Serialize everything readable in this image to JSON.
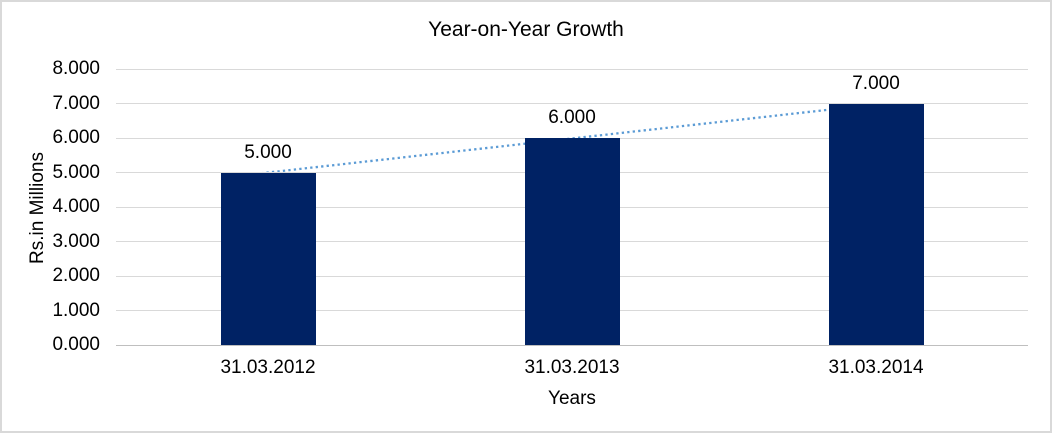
{
  "window": {
    "background_color": "#ffffff",
    "border_color": "#d9d9d9"
  },
  "chart_data": {
    "type": "bar",
    "title": "Year-on-Year Growth",
    "xlabel": "Years",
    "ylabel": "Rs.in Millions",
    "categories": [
      "31.03.2012",
      "31.03.2013",
      "31.03.2014"
    ],
    "values": [
      5000,
      6000,
      7000
    ],
    "value_labels": [
      "5.000",
      "6.000",
      "7.000"
    ],
    "y_ticks": [
      "0.000",
      "1.000",
      "2.000",
      "3.000",
      "4.000",
      "5.000",
      "6.000",
      "7.000",
      "8.000"
    ],
    "ylim": [
      0,
      8000
    ],
    "grid": true,
    "legend": "none",
    "bar_color": "#002264",
    "gridline_color": "#d9d9d9",
    "axis_line_color": "#bfbfbf",
    "text_color": "#000000",
    "trendline": {
      "style": "dotted",
      "color": "#5b9bd5",
      "from_category": "31.03.2012",
      "to_category": "31.03.2014"
    }
  }
}
